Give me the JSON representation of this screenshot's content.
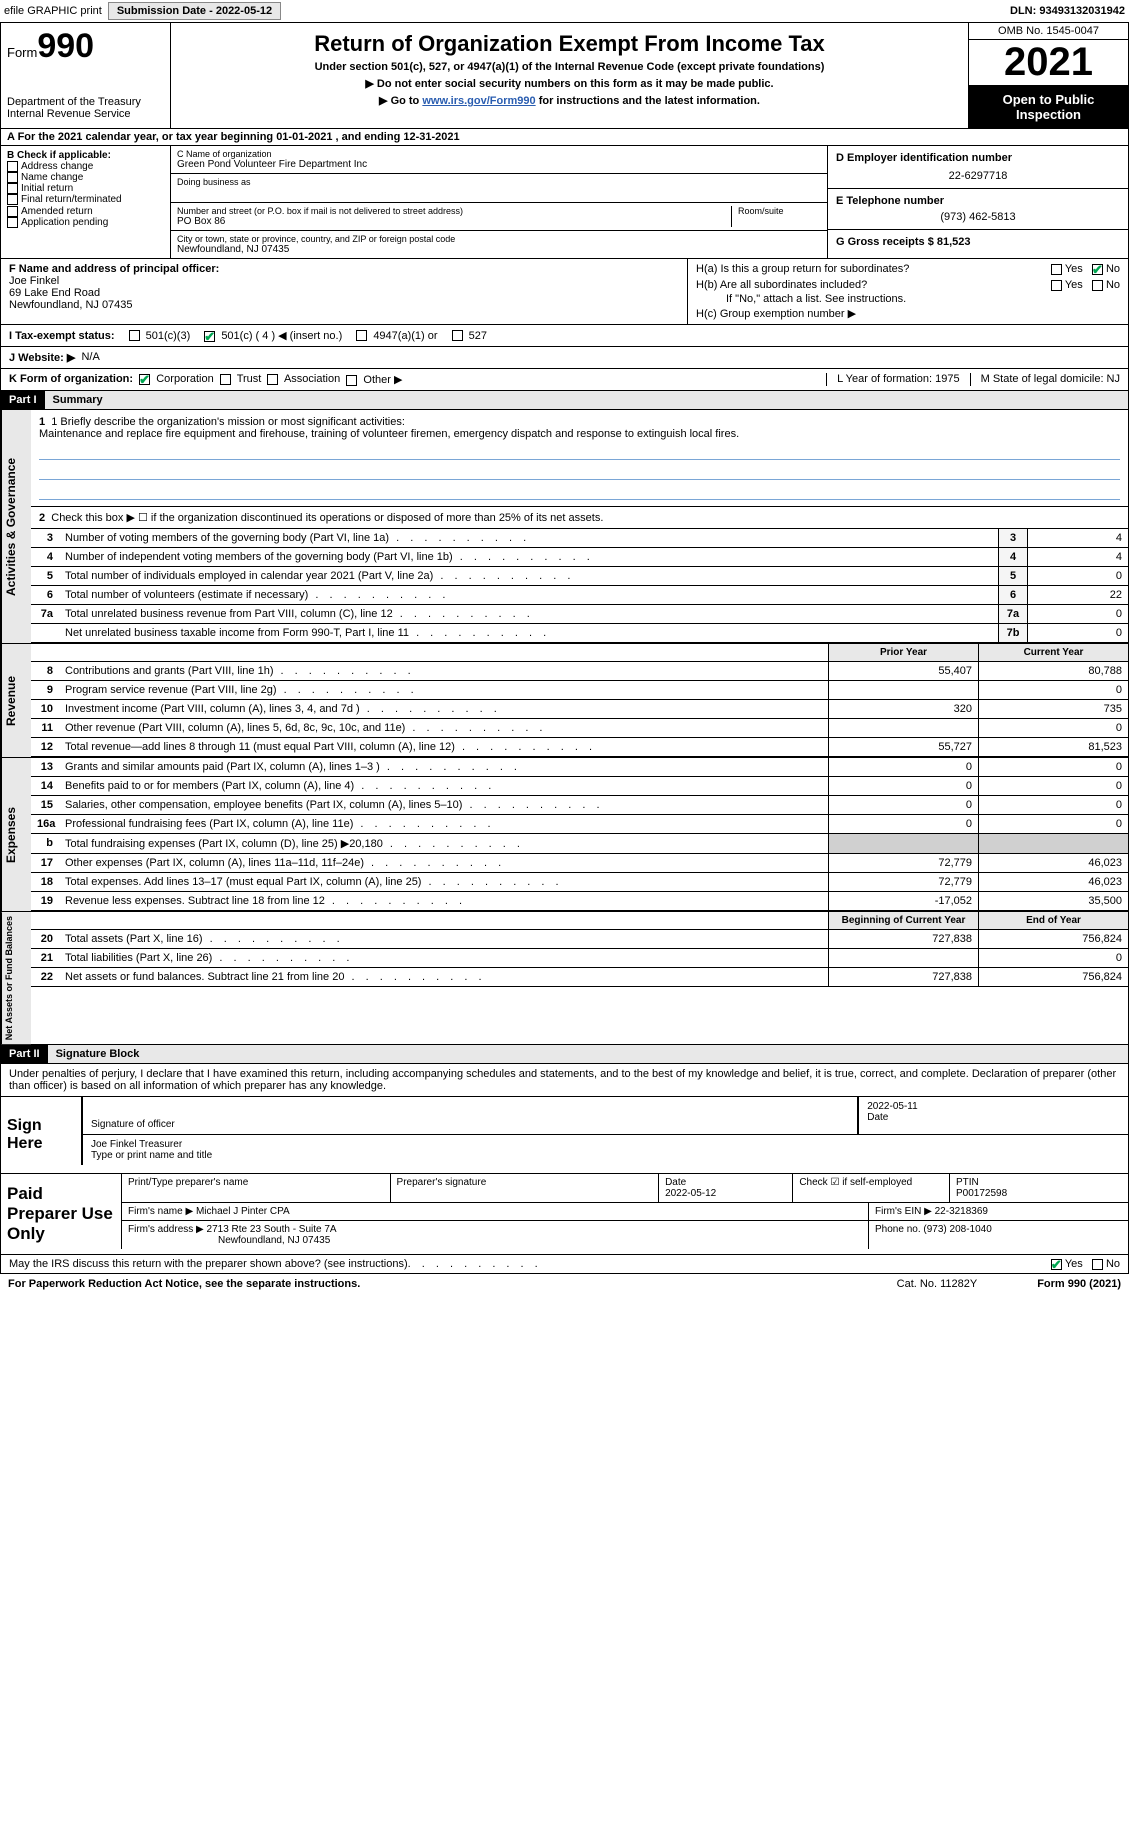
{
  "top": {
    "efile": "efile GRAPHIC print",
    "submission_label": "Submission Date - 2022-05-12",
    "dln_label": "DLN: 93493132031942"
  },
  "header": {
    "form_word": "Form",
    "form_num": "990",
    "title": "Return of Organization Exempt From Income Tax",
    "sub1": "Under section 501(c), 527, or 4947(a)(1) of the Internal Revenue Code (except private foundations)",
    "sub2": "▶ Do not enter social security numbers on this form as it may be made public.",
    "goto_pre": "▶ Go to ",
    "goto_link": "www.irs.gov/Form990",
    "goto_post": " for instructions and the latest information.",
    "dept": "Department of the Treasury",
    "irs": "Internal Revenue Service",
    "omb": "OMB No. 1545-0047",
    "year": "2021",
    "otp1": "Open to Public",
    "otp2": "Inspection"
  },
  "calendar_line": "A For the 2021 calendar year, or tax year beginning 01-01-2021    , and ending 12-31-2021",
  "B": {
    "label": "B Check if applicable:",
    "items": [
      "Address change",
      "Name change",
      "Initial return",
      "Final return/terminated",
      "Amended return",
      "Application pending"
    ]
  },
  "C": {
    "name_label": "C Name of organization",
    "name": "Green Pond Volunteer Fire Department Inc",
    "dba_label": "Doing business as",
    "street_label": "Number and street (or P.O. box if mail is not delivered to street address)",
    "room_label": "Room/suite",
    "street": "PO Box 86",
    "city_label": "City or town, state or province, country, and ZIP or foreign postal code",
    "city": "Newfoundland, NJ  07435"
  },
  "D": {
    "label": "D Employer identification number",
    "value": "22-6297718"
  },
  "E": {
    "label": "E Telephone number",
    "value": "(973) 462-5813"
  },
  "G": {
    "label": "G Gross receipts $ 81,523"
  },
  "F": {
    "label": "F  Name and address of principal officer:",
    "name": "Joe Finkel",
    "addr1": "69 Lake End Road",
    "addr2": "Newfoundland, NJ  07435"
  },
  "H": {
    "a": "H(a)  Is this a group return for subordinates?",
    "b": "H(b)  Are all subordinates included?",
    "b_note": "If \"No,\" attach a list. See instructions.",
    "c": "H(c)  Group exemption number ▶",
    "yes": "Yes",
    "no": "No"
  },
  "I_label": "I   Tax-exempt status:",
  "I_opts": {
    "a": "501(c)(3)",
    "b": "501(c) ( 4 ) ◀ (insert no.)",
    "c": "4947(a)(1) or",
    "d": "527"
  },
  "J_label": "J   Website: ▶",
  "J_val": "N/A",
  "K_label": "K Form of organization:",
  "K_opts": [
    "Corporation",
    "Trust",
    "Association",
    "Other ▶"
  ],
  "L_label": "L Year of formation: 1975",
  "M_label": "M State of legal domicile: NJ",
  "part1": {
    "part": "Part I",
    "title": "Summary"
  },
  "mission_label": "1   Briefly describe the organization's mission or most significant activities:",
  "mission_text": "Maintenance and replace fire equipment and firehouse, training of volunteer firemen, emergency dispatch and response to extinguish local fires.",
  "line2": "Check this box ▶ ☐  if the organization discontinued its operations or disposed of more than 25% of its net assets.",
  "vtab_ag": "Activities & Governance",
  "vtab_rev": "Revenue",
  "vtab_exp": "Expenses",
  "vtab_net": "Net Assets or Fund Balances",
  "lines_ag": [
    {
      "n": "3",
      "t": "Number of voting members of the governing body (Part VI, line 1a)",
      "box": "3",
      "v": "4"
    },
    {
      "n": "4",
      "t": "Number of independent voting members of the governing body (Part VI, line 1b)",
      "box": "4",
      "v": "4"
    },
    {
      "n": "5",
      "t": "Total number of individuals employed in calendar year 2021 (Part V, line 2a)",
      "box": "5",
      "v": "0"
    },
    {
      "n": "6",
      "t": "Total number of volunteers (estimate if necessary)",
      "box": "6",
      "v": "22"
    },
    {
      "n": "7a",
      "t": "Total unrelated business revenue from Part VIII, column (C), line 12",
      "box": "7a",
      "v": "0"
    },
    {
      "n": "",
      "t": "Net unrelated business taxable income from Form 990-T, Part I, line 11",
      "box": "7b",
      "v": "0"
    }
  ],
  "rev_hdr": {
    "py": "Prior Year",
    "cy": "Current Year"
  },
  "lines_rev": [
    {
      "n": "8",
      "t": "Contributions and grants (Part VIII, line 1h)",
      "py": "55,407",
      "cy": "80,788"
    },
    {
      "n": "9",
      "t": "Program service revenue (Part VIII, line 2g)",
      "py": "",
      "cy": "0"
    },
    {
      "n": "10",
      "t": "Investment income (Part VIII, column (A), lines 3, 4, and 7d )",
      "py": "320",
      "cy": "735"
    },
    {
      "n": "11",
      "t": "Other revenue (Part VIII, column (A), lines 5, 6d, 8c, 9c, 10c, and 11e)",
      "py": "",
      "cy": "0"
    },
    {
      "n": "12",
      "t": "Total revenue—add lines 8 through 11 (must equal Part VIII, column (A), line 12)",
      "py": "55,727",
      "cy": "81,523"
    }
  ],
  "lines_exp": [
    {
      "n": "13",
      "t": "Grants and similar amounts paid (Part IX, column (A), lines 1–3 )",
      "py": "0",
      "cy": "0"
    },
    {
      "n": "14",
      "t": "Benefits paid to or for members (Part IX, column (A), line 4)",
      "py": "0",
      "cy": "0"
    },
    {
      "n": "15",
      "t": "Salaries, other compensation, employee benefits (Part IX, column (A), lines 5–10)",
      "py": "0",
      "cy": "0"
    },
    {
      "n": "16a",
      "t": "Professional fundraising fees (Part IX, column (A), line 11e)",
      "py": "0",
      "cy": "0"
    },
    {
      "n": "b",
      "t": "Total fundraising expenses (Part IX, column (D), line 25) ▶20,180",
      "py": "grey",
      "cy": "grey"
    },
    {
      "n": "17",
      "t": "Other expenses (Part IX, column (A), lines 11a–11d, 11f–24e)",
      "py": "72,779",
      "cy": "46,023"
    },
    {
      "n": "18",
      "t": "Total expenses. Add lines 13–17 (must equal Part IX, column (A), line 25)",
      "py": "72,779",
      "cy": "46,023"
    },
    {
      "n": "19",
      "t": "Revenue less expenses. Subtract line 18 from line 12",
      "py": "-17,052",
      "cy": "35,500"
    }
  ],
  "net_hdr": {
    "b": "Beginning of Current Year",
    "e": "End of Year"
  },
  "lines_net": [
    {
      "n": "20",
      "t": "Total assets (Part X, line 16)",
      "py": "727,838",
      "cy": "756,824"
    },
    {
      "n": "21",
      "t": "Total liabilities (Part X, line 26)",
      "py": "",
      "cy": "0"
    },
    {
      "n": "22",
      "t": "Net assets or fund balances. Subtract line 21 from line 20",
      "py": "727,838",
      "cy": "756,824"
    }
  ],
  "part2": {
    "part": "Part II",
    "title": "Signature Block"
  },
  "penalties": "Under penalties of perjury, I declare that I have examined this return, including accompanying schedules and statements, and to the best of my knowledge and belief, it is true, correct, and complete. Declaration of preparer (other than officer) is based on all information of which preparer has any knowledge.",
  "sign": {
    "label": "Sign Here",
    "sig_label": "Signature of officer",
    "date": "2022-05-11",
    "date_label": "Date",
    "name": "Joe Finkel  Treasurer",
    "name_label": "Type or print name and title"
  },
  "paid": {
    "label": "Paid Preparer Use Only",
    "h1": "Print/Type preparer's name",
    "h2": "Preparer's signature",
    "h3": "Date",
    "h3v": "2022-05-12",
    "h4": "Check ☑ if self-employed",
    "h5": "PTIN",
    "h5v": "P00172598",
    "firm_name_l": "Firm's name    ▶",
    "firm_name": "Michael J Pinter CPA",
    "firm_ein_l": "Firm's EIN ▶",
    "firm_ein": "22-3218369",
    "firm_addr_l": "Firm's address ▶",
    "firm_addr1": "2713 Rte 23 South - Suite 7A",
    "firm_addr2": "Newfoundland, NJ  07435",
    "phone_l": "Phone no.",
    "phone": "(973) 208-1040"
  },
  "discuss": "May the IRS discuss this return with the preparer shown above? (see instructions)",
  "footer": {
    "pra": "For Paperwork Reduction Act Notice, see the separate instructions.",
    "cat": "Cat. No. 11282Y",
    "form": "Form 990 (2021)"
  },
  "colors": {
    "link": "#2a5db0",
    "check": "#00a651",
    "rule": "#7aa6d6",
    "grey_bg": "#e8e8e8"
  }
}
